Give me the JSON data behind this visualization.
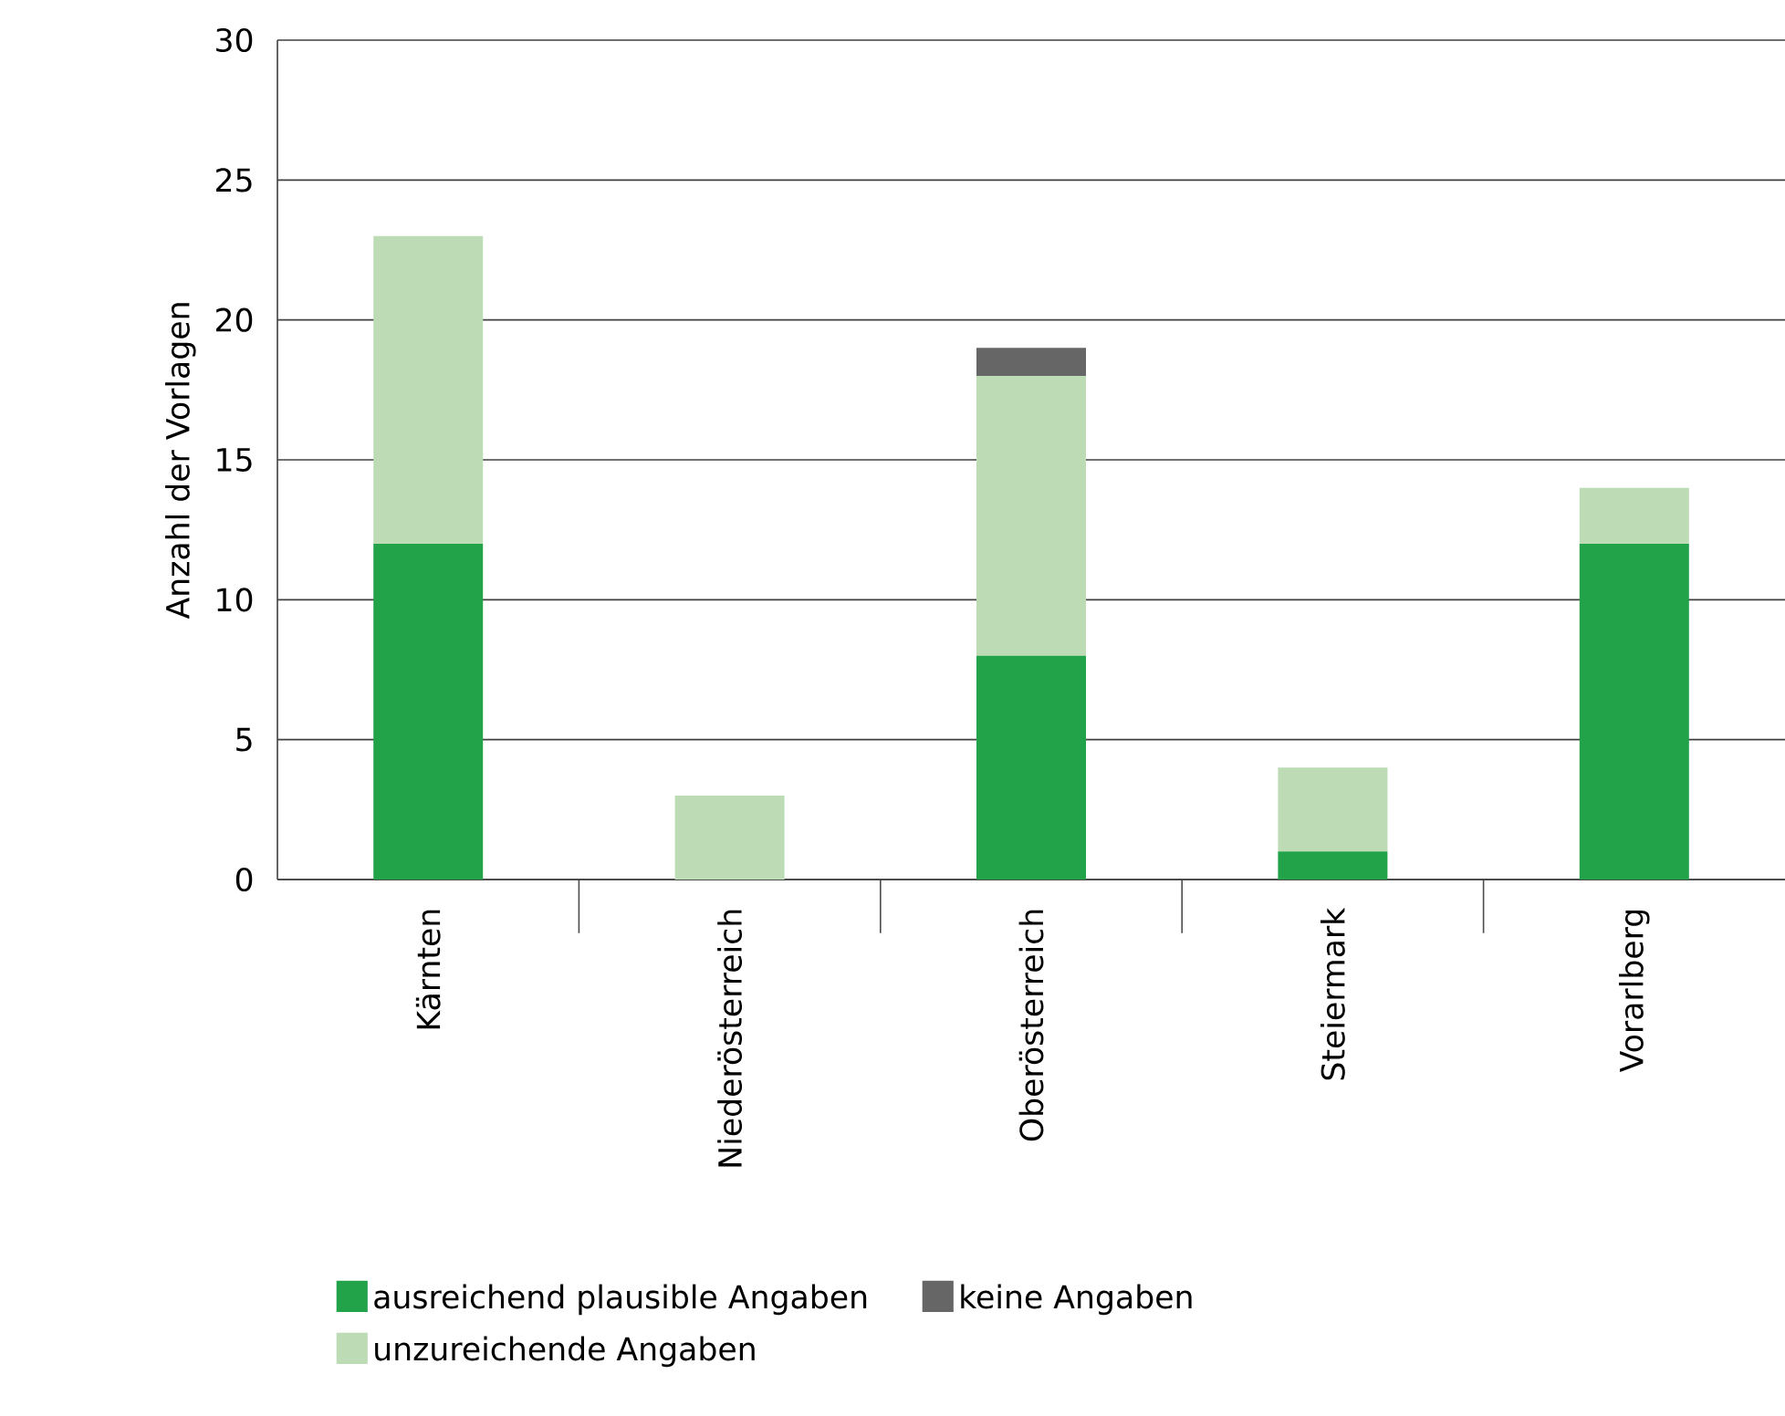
{
  "chart_data": {
    "type": "bar",
    "stacked": true,
    "ylabel": "Anzahl der Vorlagen",
    "categories": [
      "Kärnten",
      "Niederösterreich",
      "Oberösterreich",
      "Steiermark",
      "Vorarlberg"
    ],
    "series": [
      {
        "name": "ausreichend plausible Angaben",
        "color": "#22a34a",
        "values": [
          12,
          0,
          8,
          1,
          12
        ]
      },
      {
        "name": "unzureichende Angaben",
        "color": "#bddcb5",
        "values": [
          11,
          3,
          10,
          3,
          2
        ]
      },
      {
        "name": "keine Angaben",
        "color": "#666666",
        "values": [
          0,
          0,
          1,
          0,
          0
        ]
      }
    ],
    "ylim": [
      0,
      30
    ],
    "yticks": [
      0,
      5,
      10,
      15,
      20,
      25,
      30
    ],
    "grid": "y",
    "legend": "bottom"
  }
}
